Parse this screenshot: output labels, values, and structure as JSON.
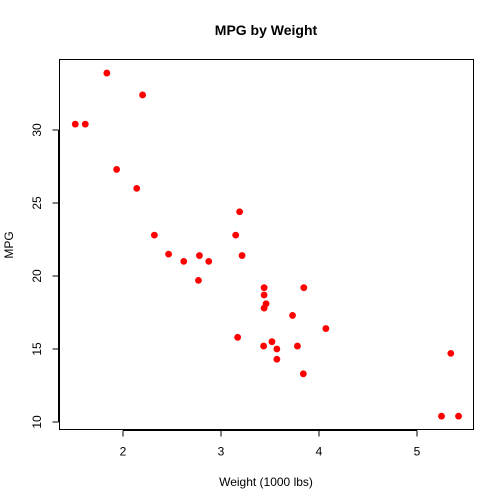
{
  "chart_data": {
    "type": "scatter",
    "title": "MPG by Weight",
    "xlabel": "Weight (1000 lbs)",
    "ylabel": "MPG",
    "xlim": [
      1.5,
      5.5
    ],
    "ylim": [
      10.0,
      34.0
    ],
    "xticks": [
      2,
      3,
      4,
      5
    ],
    "yticks": [
      10,
      15,
      20,
      25,
      30
    ],
    "grid": false,
    "marker_color": "#ff0000",
    "points": [
      {
        "x": 1.513,
        "y": 30.4
      },
      {
        "x": 1.615,
        "y": 30.4
      },
      {
        "x": 1.835,
        "y": 33.9
      },
      {
        "x": 1.935,
        "y": 27.3
      },
      {
        "x": 2.14,
        "y": 26.0
      },
      {
        "x": 2.2,
        "y": 32.4
      },
      {
        "x": 2.32,
        "y": 22.8
      },
      {
        "x": 2.465,
        "y": 21.5
      },
      {
        "x": 2.62,
        "y": 21.0
      },
      {
        "x": 2.77,
        "y": 19.7
      },
      {
        "x": 2.78,
        "y": 21.4
      },
      {
        "x": 2.875,
        "y": 21.0
      },
      {
        "x": 3.15,
        "y": 22.8
      },
      {
        "x": 3.17,
        "y": 15.8
      },
      {
        "x": 3.19,
        "y": 24.4
      },
      {
        "x": 3.215,
        "y": 21.4
      },
      {
        "x": 3.435,
        "y": 15.2
      },
      {
        "x": 3.44,
        "y": 18.7
      },
      {
        "x": 3.44,
        "y": 19.2
      },
      {
        "x": 3.44,
        "y": 17.8
      },
      {
        "x": 3.46,
        "y": 18.1
      },
      {
        "x": 3.52,
        "y": 15.5
      },
      {
        "x": 3.57,
        "y": 15.0
      },
      {
        "x": 3.57,
        "y": 14.3
      },
      {
        "x": 3.73,
        "y": 17.3
      },
      {
        "x": 3.78,
        "y": 15.2
      },
      {
        "x": 3.84,
        "y": 13.3
      },
      {
        "x": 3.845,
        "y": 19.2
      },
      {
        "x": 4.07,
        "y": 16.4
      },
      {
        "x": 5.25,
        "y": 10.4
      },
      {
        "x": 5.345,
        "y": 14.7
      },
      {
        "x": 5.424,
        "y": 10.4
      }
    ]
  }
}
